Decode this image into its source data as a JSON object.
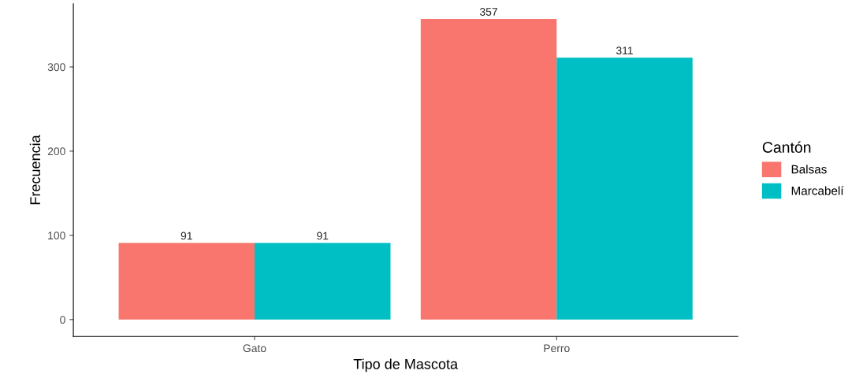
{
  "chart_data": {
    "type": "bar",
    "xlabel": "Tipo de Mascota",
    "ylabel": "Frecuencia",
    "legend_title": "Cantón",
    "categories": [
      "Gato",
      "Perro"
    ],
    "series": [
      {
        "name": "Balsas",
        "color": "#f8766d",
        "values": [
          91,
          357
        ]
      },
      {
        "name": "Marcabelí",
        "color": "#00bfc4",
        "values": [
          91,
          311
        ]
      }
    ],
    "ylim": [
      -20,
      375
    ],
    "yticks": [
      0,
      100,
      200,
      300
    ],
    "grid": false,
    "legend": "right",
    "data_labels": true
  }
}
